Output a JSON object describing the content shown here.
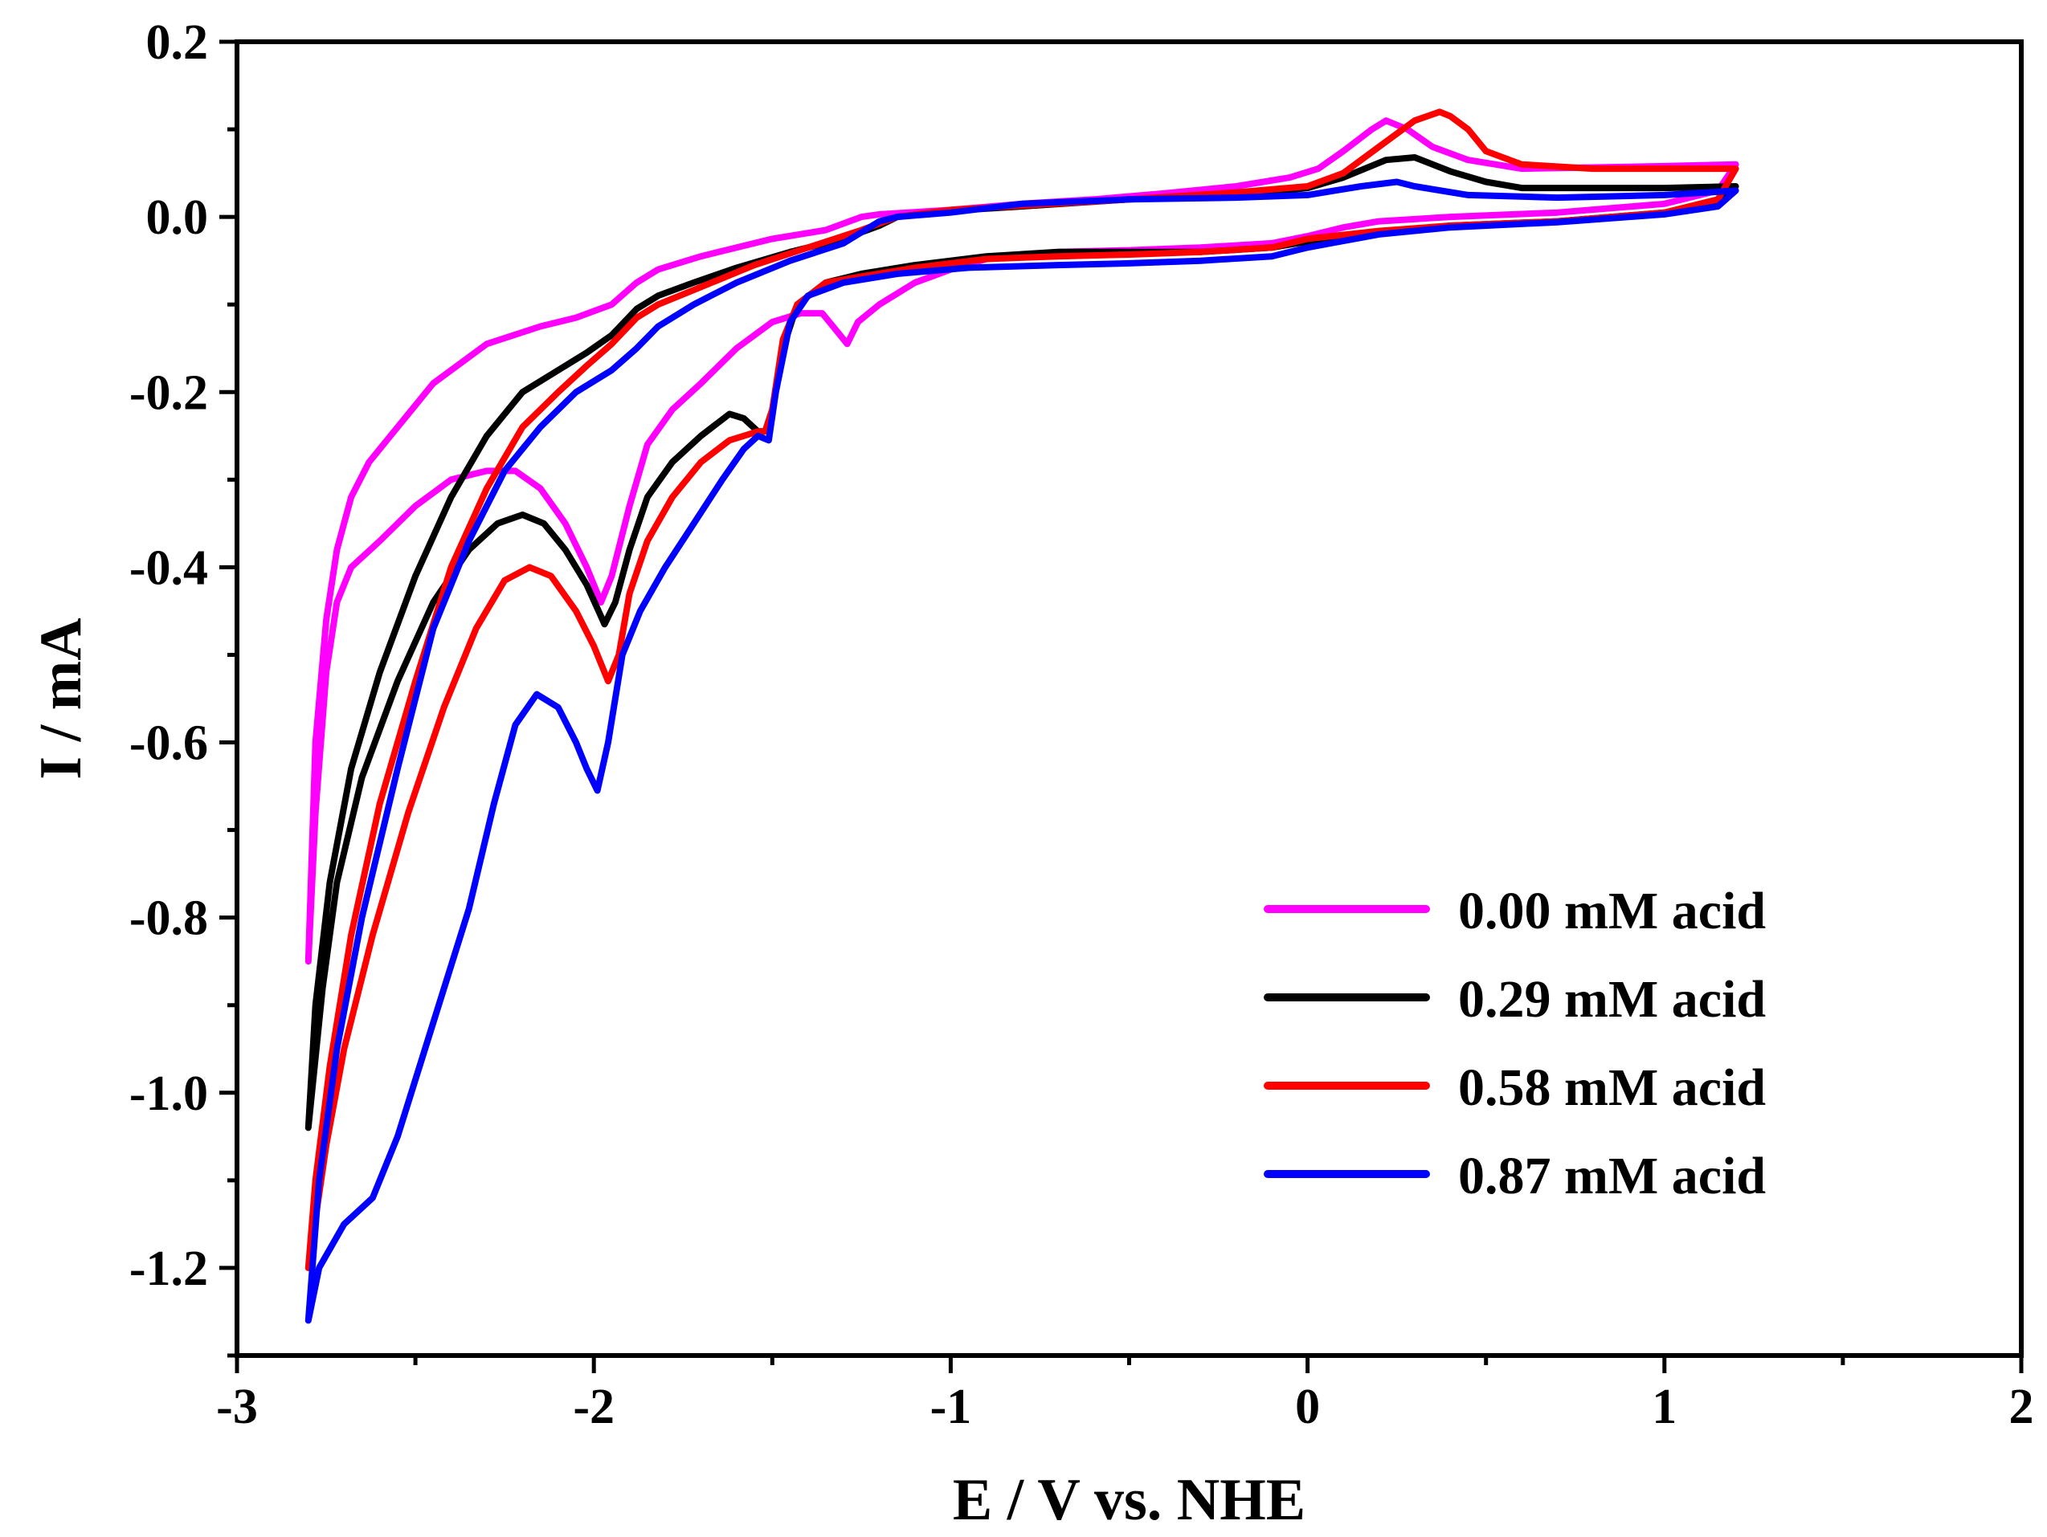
{
  "chart_data": {
    "type": "line",
    "title": "",
    "xlabel": "E / V vs. NHE",
    "ylabel": "I / mA",
    "xlim": [
      -3,
      2
    ],
    "ylim": [
      -1.3,
      0.2
    ],
    "x_ticks": [
      {
        "value": -3,
        "label": "-3"
      },
      {
        "value": -2,
        "label": "-2"
      },
      {
        "value": -1,
        "label": "-1"
      },
      {
        "value": 0,
        "label": "0"
      },
      {
        "value": 1,
        "label": "1"
      },
      {
        "value": 2,
        "label": "2"
      }
    ],
    "y_ticks": [
      {
        "value": 0.2,
        "label": "0.2"
      },
      {
        "value": 0.0,
        "label": "0.0"
      },
      {
        "value": -0.2,
        "label": "-0.2"
      },
      {
        "value": -0.4,
        "label": "-0.4"
      },
      {
        "value": -0.6,
        "label": "-0.6"
      },
      {
        "value": -0.8,
        "label": "-0.8"
      },
      {
        "value": -1.0,
        "label": "-1.0"
      },
      {
        "value": -1.2,
        "label": "-1.2"
      }
    ],
    "x_minor_ticks": [
      -2.5,
      -1.5,
      -0.5,
      0.5,
      1.5
    ],
    "y_minor_ticks": [
      0.1,
      -0.1,
      -0.3,
      -0.5,
      -0.7,
      -0.9,
      -1.1,
      -1.3
    ],
    "grid": false,
    "legend_position": "bottom-right",
    "series": [
      {
        "name": "0.00 mM acid",
        "color": "#ff00ff",
        "points": [
          [
            -2.8,
            -0.85
          ],
          [
            -2.78,
            -0.68
          ],
          [
            -2.75,
            -0.52
          ],
          [
            -2.72,
            -0.44
          ],
          [
            -2.68,
            -0.4
          ],
          [
            -2.6,
            -0.37
          ],
          [
            -2.5,
            -0.33
          ],
          [
            -2.4,
            -0.3
          ],
          [
            -2.3,
            -0.29
          ],
          [
            -2.22,
            -0.29
          ],
          [
            -2.15,
            -0.31
          ],
          [
            -2.08,
            -0.35
          ],
          [
            -2.02,
            -0.4
          ],
          [
            -1.98,
            -0.44
          ],
          [
            -1.95,
            -0.41
          ],
          [
            -1.9,
            -0.33
          ],
          [
            -1.85,
            -0.26
          ],
          [
            -1.78,
            -0.22
          ],
          [
            -1.7,
            -0.19
          ],
          [
            -1.6,
            -0.15
          ],
          [
            -1.5,
            -0.12
          ],
          [
            -1.42,
            -0.11
          ],
          [
            -1.36,
            -0.11
          ],
          [
            -1.32,
            -0.13
          ],
          [
            -1.29,
            -0.145
          ],
          [
            -1.26,
            -0.12
          ],
          [
            -1.2,
            -0.1
          ],
          [
            -1.1,
            -0.075
          ],
          [
            -1.0,
            -0.06
          ],
          [
            -0.9,
            -0.048
          ],
          [
            -0.7,
            -0.04
          ],
          [
            -0.5,
            -0.038
          ],
          [
            -0.3,
            -0.035
          ],
          [
            -0.1,
            -0.03
          ],
          [
            0.0,
            -0.022
          ],
          [
            0.1,
            -0.012
          ],
          [
            0.2,
            -0.005
          ],
          [
            0.4,
            0.0
          ],
          [
            0.7,
            0.005
          ],
          [
            1.0,
            0.015
          ],
          [
            1.15,
            0.03
          ],
          [
            1.2,
            0.06
          ],
          [
            1.0,
            0.058
          ],
          [
            0.6,
            0.055
          ],
          [
            0.45,
            0.065
          ],
          [
            0.35,
            0.08
          ],
          [
            0.28,
            0.1
          ],
          [
            0.22,
            0.11
          ],
          [
            0.18,
            0.1
          ],
          [
            0.1,
            0.075
          ],
          [
            0.03,
            0.055
          ],
          [
            -0.05,
            0.045
          ],
          [
            -0.2,
            0.035
          ],
          [
            -0.4,
            0.027
          ],
          [
            -0.6,
            0.02
          ],
          [
            -0.8,
            0.015
          ],
          [
            -1.0,
            0.008
          ],
          [
            -1.2,
            0.003
          ],
          [
            -1.25,
            0.0
          ],
          [
            -1.35,
            -0.015
          ],
          [
            -1.5,
            -0.025
          ],
          [
            -1.7,
            -0.045
          ],
          [
            -1.82,
            -0.06
          ],
          [
            -1.88,
            -0.075
          ],
          [
            -1.95,
            -0.1
          ],
          [
            -2.05,
            -0.115
          ],
          [
            -2.15,
            -0.125
          ],
          [
            -2.3,
            -0.145
          ],
          [
            -2.45,
            -0.19
          ],
          [
            -2.55,
            -0.24
          ],
          [
            -2.63,
            -0.28
          ],
          [
            -2.68,
            -0.32
          ],
          [
            -2.72,
            -0.38
          ],
          [
            -2.75,
            -0.46
          ],
          [
            -2.78,
            -0.6
          ],
          [
            -2.8,
            -0.85
          ]
        ]
      },
      {
        "name": "0.29 mM acid",
        "color": "#000000",
        "points": [
          [
            -2.8,
            -1.04
          ],
          [
            -2.76,
            -0.88
          ],
          [
            -2.72,
            -0.76
          ],
          [
            -2.65,
            -0.64
          ],
          [
            -2.55,
            -0.53
          ],
          [
            -2.45,
            -0.44
          ],
          [
            -2.35,
            -0.38
          ],
          [
            -2.27,
            -0.35
          ],
          [
            -2.2,
            -0.34
          ],
          [
            -2.14,
            -0.35
          ],
          [
            -2.08,
            -0.38
          ],
          [
            -2.02,
            -0.42
          ],
          [
            -1.97,
            -0.465
          ],
          [
            -1.94,
            -0.44
          ],
          [
            -1.9,
            -0.38
          ],
          [
            -1.85,
            -0.32
          ],
          [
            -1.78,
            -0.28
          ],
          [
            -1.7,
            -0.25
          ],
          [
            -1.62,
            -0.225
          ],
          [
            -1.58,
            -0.23
          ],
          [
            -1.54,
            -0.245
          ],
          [
            -1.52,
            -0.245
          ],
          [
            -1.5,
            -0.22
          ],
          [
            -1.47,
            -0.15
          ],
          [
            -1.43,
            -0.1
          ],
          [
            -1.35,
            -0.075
          ],
          [
            -1.25,
            -0.065
          ],
          [
            -1.1,
            -0.055
          ],
          [
            -0.9,
            -0.045
          ],
          [
            -0.7,
            -0.04
          ],
          [
            -0.5,
            -0.04
          ],
          [
            -0.3,
            -0.04
          ],
          [
            -0.1,
            -0.035
          ],
          [
            0.0,
            -0.028
          ],
          [
            0.2,
            -0.018
          ],
          [
            0.4,
            -0.01
          ],
          [
            0.7,
            -0.005
          ],
          [
            1.0,
            0.005
          ],
          [
            1.15,
            0.015
          ],
          [
            1.2,
            0.035
          ],
          [
            1.0,
            0.033
          ],
          [
            0.6,
            0.033
          ],
          [
            0.5,
            0.04
          ],
          [
            0.4,
            0.052
          ],
          [
            0.3,
            0.068
          ],
          [
            0.22,
            0.065
          ],
          [
            0.1,
            0.045
          ],
          [
            0.0,
            0.033
          ],
          [
            -0.2,
            0.025
          ],
          [
            -0.5,
            0.02
          ],
          [
            -0.8,
            0.012
          ],
          [
            -1.0,
            0.007
          ],
          [
            -1.15,
            0.0
          ],
          [
            -1.2,
            -0.01
          ],
          [
            -1.3,
            -0.025
          ],
          [
            -1.45,
            -0.04
          ],
          [
            -1.6,
            -0.058
          ],
          [
            -1.72,
            -0.075
          ],
          [
            -1.82,
            -0.09
          ],
          [
            -1.88,
            -0.105
          ],
          [
            -1.95,
            -0.135
          ],
          [
            -2.02,
            -0.155
          ],
          [
            -2.1,
            -0.175
          ],
          [
            -2.2,
            -0.2
          ],
          [
            -2.3,
            -0.25
          ],
          [
            -2.4,
            -0.32
          ],
          [
            -2.5,
            -0.41
          ],
          [
            -2.6,
            -0.52
          ],
          [
            -2.68,
            -0.63
          ],
          [
            -2.74,
            -0.76
          ],
          [
            -2.78,
            -0.9
          ],
          [
            -2.8,
            -1.04
          ]
        ]
      },
      {
        "name": "0.58 mM acid",
        "color": "#ff0000",
        "points": [
          [
            -2.8,
            -1.2
          ],
          [
            -2.75,
            -1.06
          ],
          [
            -2.7,
            -0.95
          ],
          [
            -2.62,
            -0.82
          ],
          [
            -2.52,
            -0.68
          ],
          [
            -2.42,
            -0.56
          ],
          [
            -2.33,
            -0.47
          ],
          [
            -2.25,
            -0.415
          ],
          [
            -2.18,
            -0.4
          ],
          [
            -2.12,
            -0.41
          ],
          [
            -2.05,
            -0.45
          ],
          [
            -2.0,
            -0.49
          ],
          [
            -1.96,
            -0.53
          ],
          [
            -1.93,
            -0.5
          ],
          [
            -1.9,
            -0.43
          ],
          [
            -1.85,
            -0.37
          ],
          [
            -1.78,
            -0.32
          ],
          [
            -1.7,
            -0.28
          ],
          [
            -1.62,
            -0.255
          ],
          [
            -1.58,
            -0.25
          ],
          [
            -1.54,
            -0.245
          ],
          [
            -1.52,
            -0.245
          ],
          [
            -1.5,
            -0.22
          ],
          [
            -1.47,
            -0.14
          ],
          [
            -1.43,
            -0.1
          ],
          [
            -1.35,
            -0.075
          ],
          [
            -1.25,
            -0.068
          ],
          [
            -1.1,
            -0.058
          ],
          [
            -0.9,
            -0.048
          ],
          [
            -0.7,
            -0.045
          ],
          [
            -0.5,
            -0.043
          ],
          [
            -0.3,
            -0.04
          ],
          [
            -0.1,
            -0.035
          ],
          [
            0.0,
            -0.025
          ],
          [
            0.2,
            -0.016
          ],
          [
            0.4,
            -0.01
          ],
          [
            0.7,
            -0.005
          ],
          [
            1.0,
            0.005
          ],
          [
            1.15,
            0.02
          ],
          [
            1.2,
            0.055
          ],
          [
            1.0,
            0.055
          ],
          [
            0.8,
            0.055
          ],
          [
            0.6,
            0.06
          ],
          [
            0.5,
            0.075
          ],
          [
            0.45,
            0.1
          ],
          [
            0.4,
            0.115
          ],
          [
            0.37,
            0.12
          ],
          [
            0.3,
            0.11
          ],
          [
            0.2,
            0.08
          ],
          [
            0.1,
            0.05
          ],
          [
            0.0,
            0.035
          ],
          [
            -0.2,
            0.028
          ],
          [
            -0.5,
            0.02
          ],
          [
            -0.8,
            0.013
          ],
          [
            -1.0,
            0.008
          ],
          [
            -1.15,
            0.0
          ],
          [
            -1.25,
            -0.015
          ],
          [
            -1.4,
            -0.035
          ],
          [
            -1.55,
            -0.055
          ],
          [
            -1.7,
            -0.08
          ],
          [
            -1.82,
            -0.1
          ],
          [
            -1.88,
            -0.115
          ],
          [
            -1.95,
            -0.145
          ],
          [
            -2.02,
            -0.17
          ],
          [
            -2.1,
            -0.2
          ],
          [
            -2.2,
            -0.24
          ],
          [
            -2.3,
            -0.31
          ],
          [
            -2.4,
            -0.4
          ],
          [
            -2.5,
            -0.53
          ],
          [
            -2.6,
            -0.67
          ],
          [
            -2.68,
            -0.82
          ],
          [
            -2.74,
            -0.97
          ],
          [
            -2.78,
            -1.1
          ],
          [
            -2.8,
            -1.2
          ]
        ]
      },
      {
        "name": "0.87 mM acid",
        "color": "#0000ff",
        "points": [
          [
            -2.8,
            -1.26
          ],
          [
            -2.77,
            -1.2
          ],
          [
            -2.7,
            -1.15
          ],
          [
            -2.62,
            -1.12
          ],
          [
            -2.55,
            -1.05
          ],
          [
            -2.45,
            -0.92
          ],
          [
            -2.35,
            -0.79
          ],
          [
            -2.28,
            -0.67
          ],
          [
            -2.22,
            -0.58
          ],
          [
            -2.16,
            -0.545
          ],
          [
            -2.1,
            -0.56
          ],
          [
            -2.05,
            -0.6
          ],
          [
            -2.02,
            -0.63
          ],
          [
            -1.99,
            -0.655
          ],
          [
            -1.96,
            -0.6
          ],
          [
            -1.92,
            -0.5
          ],
          [
            -1.87,
            -0.45
          ],
          [
            -1.8,
            -0.4
          ],
          [
            -1.72,
            -0.35
          ],
          [
            -1.64,
            -0.3
          ],
          [
            -1.58,
            -0.265
          ],
          [
            -1.54,
            -0.25
          ],
          [
            -1.51,
            -0.255
          ],
          [
            -1.49,
            -0.2
          ],
          [
            -1.45,
            -0.12
          ],
          [
            -1.4,
            -0.09
          ],
          [
            -1.3,
            -0.075
          ],
          [
            -1.15,
            -0.065
          ],
          [
            -0.95,
            -0.058
          ],
          [
            -0.7,
            -0.055
          ],
          [
            -0.5,
            -0.053
          ],
          [
            -0.3,
            -0.05
          ],
          [
            -0.1,
            -0.045
          ],
          [
            0.0,
            -0.035
          ],
          [
            0.2,
            -0.02
          ],
          [
            0.4,
            -0.012
          ],
          [
            0.7,
            -0.006
          ],
          [
            1.0,
            0.003
          ],
          [
            1.15,
            0.012
          ],
          [
            1.2,
            0.03
          ],
          [
            1.0,
            0.025
          ],
          [
            0.7,
            0.022
          ],
          [
            0.45,
            0.025
          ],
          [
            0.3,
            0.035
          ],
          [
            0.25,
            0.04
          ],
          [
            0.15,
            0.035
          ],
          [
            0.0,
            0.025
          ],
          [
            -0.2,
            0.022
          ],
          [
            -0.5,
            0.02
          ],
          [
            -0.8,
            0.015
          ],
          [
            -1.0,
            0.005
          ],
          [
            -1.15,
            0.0
          ],
          [
            -1.2,
            -0.005
          ],
          [
            -1.3,
            -0.03
          ],
          [
            -1.45,
            -0.05
          ],
          [
            -1.6,
            -0.075
          ],
          [
            -1.72,
            -0.1
          ],
          [
            -1.82,
            -0.125
          ],
          [
            -1.88,
            -0.15
          ],
          [
            -1.95,
            -0.175
          ],
          [
            -2.05,
            -0.2
          ],
          [
            -2.15,
            -0.24
          ],
          [
            -2.25,
            -0.29
          ],
          [
            -2.35,
            -0.37
          ],
          [
            -2.45,
            -0.47
          ],
          [
            -2.55,
            -0.63
          ],
          [
            -2.65,
            -0.8
          ],
          [
            -2.72,
            -0.95
          ],
          [
            -2.77,
            -1.1
          ],
          [
            -2.8,
            -1.26
          ]
        ]
      }
    ]
  }
}
